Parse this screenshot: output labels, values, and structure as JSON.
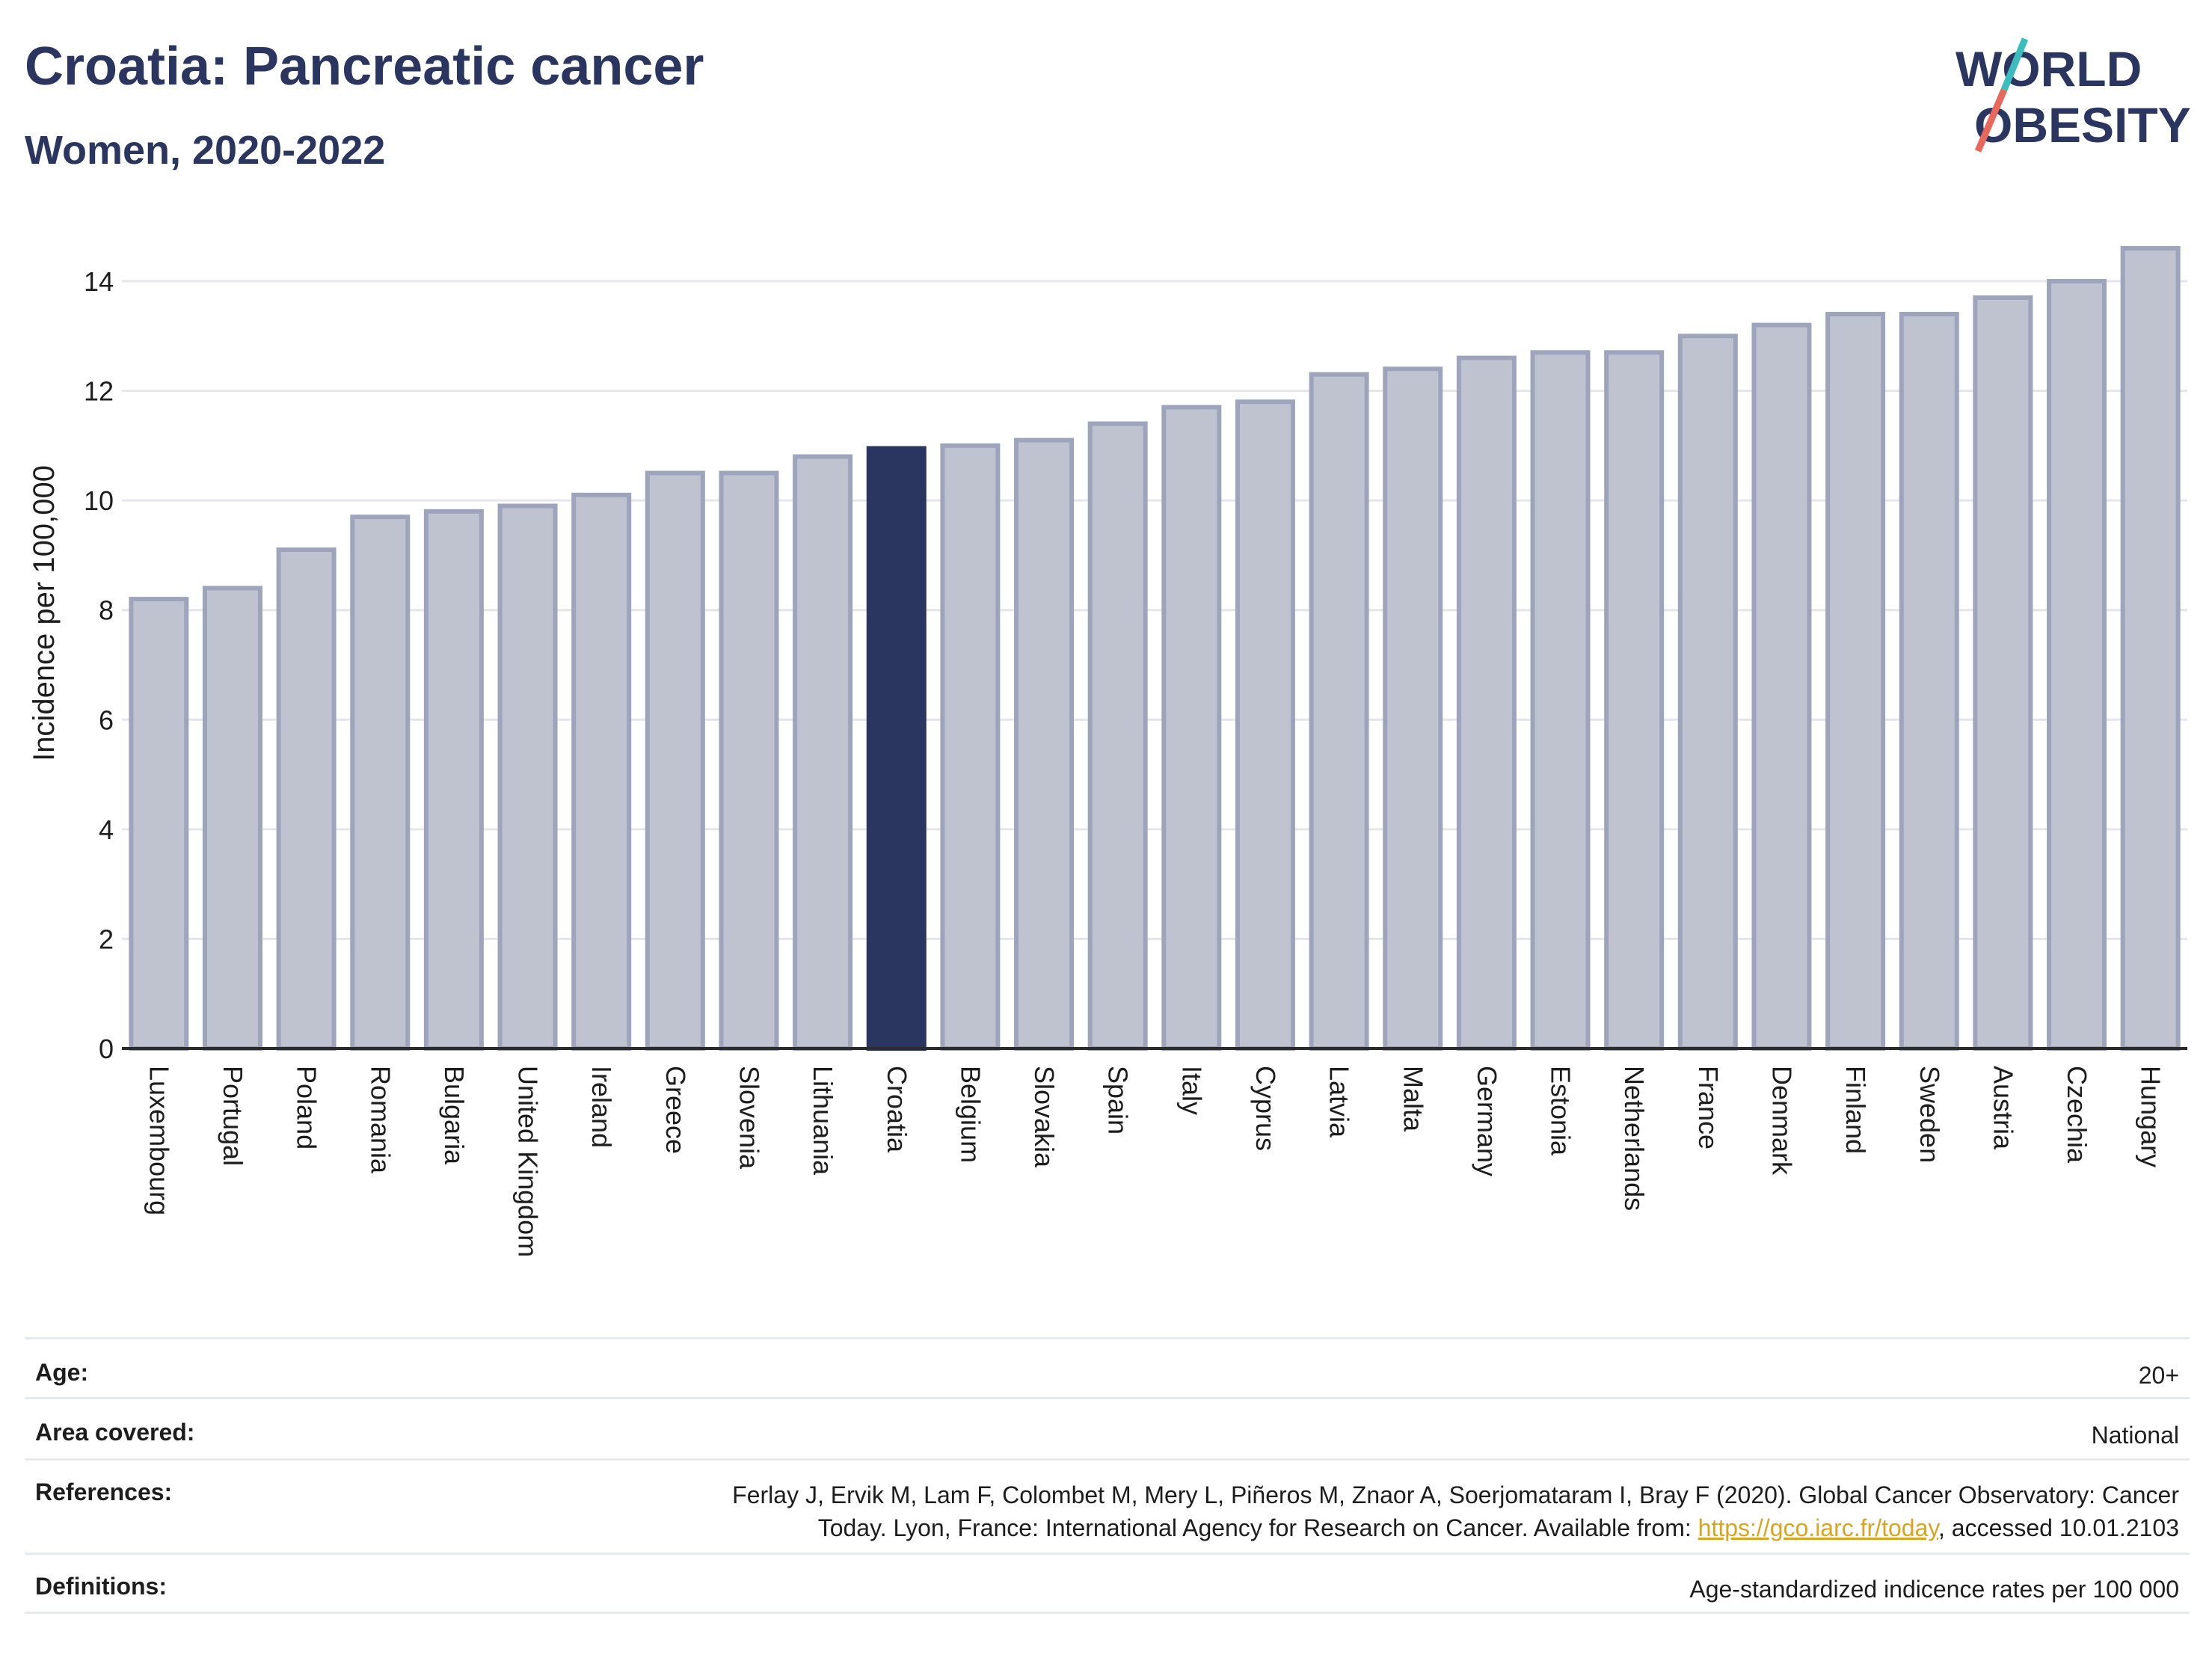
{
  "header": {
    "title": "Croatia: Pancreatic cancer",
    "subtitle": "Women, 2020-2022"
  },
  "logo": {
    "line1": "WORLD",
    "line2": "OBESITY"
  },
  "colors": {
    "highlight": "#2a3560",
    "bar_fill": "#bfc3d0",
    "bar_stroke": "#9ea4bc",
    "title": "#2a3560",
    "link": "#d9a521",
    "logo_teal": "#3bbdbd",
    "logo_coral": "#e8685c"
  },
  "chart_data": {
    "type": "bar",
    "title": "",
    "xlabel": "",
    "ylabel": "Incidence per 100,000",
    "ylim": [
      0,
      15
    ],
    "yticks": [
      0,
      2,
      4,
      6,
      8,
      10,
      12,
      14
    ],
    "highlight": "Croatia",
    "grid": true,
    "categories": [
      "Luxembourg",
      "Portugal",
      "Poland",
      "Romania",
      "Bulgaria",
      "United Kingdom",
      "Ireland",
      "Greece",
      "Slovenia",
      "Lithuania",
      "Croatia",
      "Belgium",
      "Slovakia",
      "Spain",
      "Italy",
      "Cyprus",
      "Latvia",
      "Malta",
      "Germany",
      "Estonia",
      "Netherlands",
      "France",
      "Denmark",
      "Finland",
      "Sweden",
      "Austria",
      "Czechia",
      "Hungary"
    ],
    "values": [
      8.2,
      8.4,
      9.1,
      9.7,
      9.8,
      9.9,
      10.1,
      10.5,
      10.5,
      10.8,
      10.95,
      11.0,
      11.1,
      11.4,
      11.7,
      11.8,
      12.3,
      12.4,
      12.6,
      12.7,
      12.7,
      13.0,
      13.2,
      13.4,
      13.4,
      13.7,
      14.0,
      14.6
    ]
  },
  "meta": {
    "age_label": "Age:",
    "age_value": "20+",
    "area_label": "Area covered:",
    "area_value": "National",
    "references_label": "References:",
    "references_text1": "Ferlay J, Ervik M, Lam F, Colombet M, Mery L, Piñeros M, Znaor A, Soerjomataram I, Bray F (2020). Global Cancer Observatory: Cancer",
    "references_text2a": "Today. Lyon, France: International Agency for Research on Cancer. Available from: ",
    "references_link": "https://gco.iarc.fr/today",
    "references_text2b": ", accessed 10.01.2103",
    "definitions_label": "Definitions:",
    "definitions_value": "Age-standardized indicence rates per 100 000"
  }
}
